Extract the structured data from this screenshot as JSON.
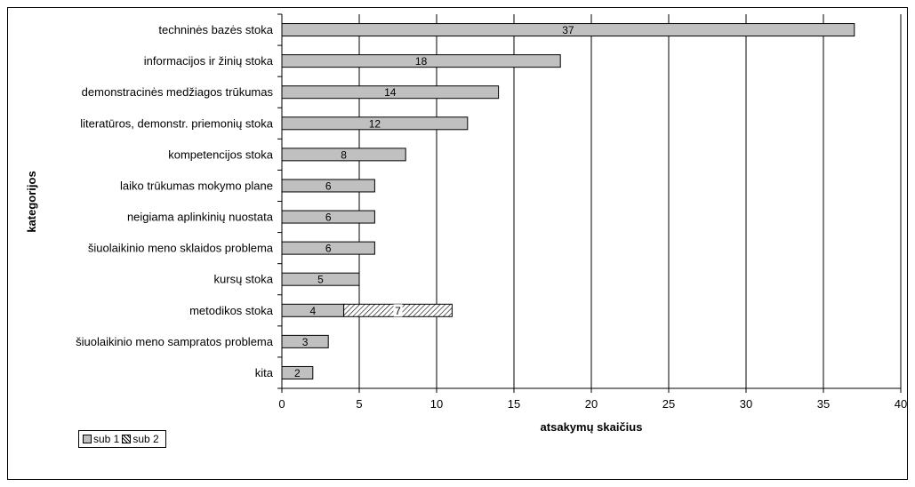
{
  "chart_data": {
    "type": "bar",
    "orientation": "horizontal",
    "stacked": true,
    "xlabel": "atsakymų skaičius",
    "ylabel": "kategorijos",
    "xlim": [
      0,
      40
    ],
    "xticks": [
      0,
      5,
      10,
      15,
      20,
      25,
      30,
      35,
      40
    ],
    "grid": "vertical",
    "legend_position": "bottom-left",
    "categories": [
      "techninės bazės stoka",
      "informacijos ir žinių stoka",
      "demonstracinės medžiagos trūkumas",
      "literatūros, demonstr. priemonių stoka",
      "kompetencijos stoka",
      "laiko trūkumas mokymo plane",
      "neigiama aplinkinių nuostata",
      "šiuolaikinio meno sklaidos problema",
      "kursų stoka",
      "metodikos stoka",
      "šiuolaikinio meno sampratos problema",
      "kita"
    ],
    "series": [
      {
        "name": "sub 1",
        "color": "#c0c0c0",
        "pattern": "solid",
        "values": [
          37,
          18,
          14,
          12,
          8,
          6,
          6,
          6,
          5,
          4,
          3,
          2
        ]
      },
      {
        "name": "sub 2",
        "color": "#ffffff",
        "pattern": "diagonal-hatch",
        "values": [
          0,
          0,
          0,
          0,
          0,
          0,
          0,
          0,
          0,
          7,
          0,
          0
        ]
      }
    ]
  }
}
